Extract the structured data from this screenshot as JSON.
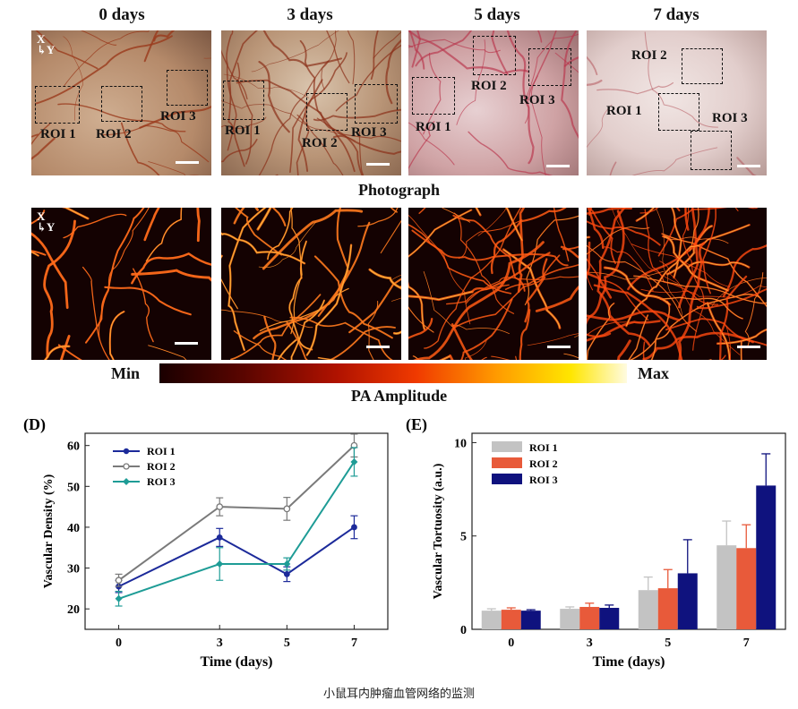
{
  "figure": {
    "days": [
      "0 days",
      "3 days",
      "5 days",
      "7 days"
    ],
    "axis_x": "X",
    "axis_y": "Y",
    "row1_label": "Photograph",
    "colorbar": {
      "min_label": "Min",
      "max_label": "Max",
      "title": "PA Amplitude"
    },
    "roi_labels": {
      "p0": [
        "ROI 1",
        "ROI 2",
        "ROI 3"
      ],
      "p1": [
        "ROI 1",
        "ROI 2",
        "ROI 3"
      ],
      "p2": [
        "ROI 1",
        "ROI 2",
        "ROI 3"
      ],
      "p3": [
        "ROI 2",
        "ROI 1",
        "ROI 3"
      ]
    },
    "caption": "小鼠耳内肿瘤血管网络的监测"
  },
  "chart_data": [
    {
      "panel": "(D)",
      "type": "line",
      "x": [
        0,
        3,
        5,
        7
      ],
      "xlabel": "Time (days)",
      "ylabel": "Vascular Density (%)",
      "xlim": [
        -1,
        8
      ],
      "ylim": [
        15,
        63
      ],
      "yticks": [
        20,
        30,
        40,
        50,
        60
      ],
      "xticks": [
        0,
        3,
        5,
        7
      ],
      "legend_position": "top-left",
      "series": [
        {
          "name": "ROI 1",
          "values": [
            25.5,
            37.5,
            28.5,
            40
          ],
          "errors": [
            1.5,
            2.2,
            1.8,
            2.8
          ],
          "color": "#1c2a9a",
          "marker": "circle"
        },
        {
          "name": "ROI 2",
          "values": [
            27,
            45,
            44.5,
            60
          ],
          "errors": [
            1.5,
            2.2,
            2.8,
            2.8
          ],
          "color": "#7a7a7a",
          "marker": "open-circle"
        },
        {
          "name": "ROI 3",
          "values": [
            22.5,
            31,
            31,
            56
          ],
          "errors": [
            1.8,
            4,
            1.5,
            3.5
          ],
          "color": "#1e9c96",
          "marker": "diamond"
        }
      ]
    },
    {
      "panel": "(E)",
      "type": "bar",
      "categories": [
        "0",
        "3",
        "5",
        "7"
      ],
      "xlabel": "Time (days)",
      "ylabel": "Vascular Tortuosity (a.u.)",
      "ylim": [
        0,
        10.5
      ],
      "yticks": [
        0,
        5,
        10
      ],
      "legend_position": "top-left",
      "series": [
        {
          "name": "ROI 1",
          "values": [
            1.0,
            1.1,
            2.1,
            4.5
          ],
          "errors": [
            0.1,
            0.1,
            0.7,
            1.3
          ],
          "color": "#c3c3c3"
        },
        {
          "name": "ROI 2",
          "values": [
            1.05,
            1.2,
            2.2,
            4.35
          ],
          "errors": [
            0.1,
            0.2,
            1.0,
            1.25
          ],
          "color": "#e85a3a"
        },
        {
          "name": "ROI 3",
          "values": [
            1.0,
            1.15,
            3.0,
            7.7
          ],
          "errors": [
            0.05,
            0.15,
            1.8,
            1.7
          ],
          "color": "#0f127e"
        }
      ]
    }
  ]
}
